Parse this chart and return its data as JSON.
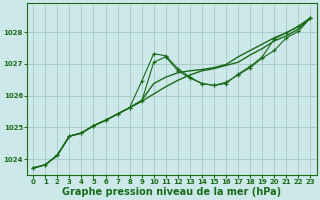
{
  "background_color": "#cce8e8",
  "grid_color": "#aacccc",
  "line_color": "#1a6b1a",
  "xlabel": "Graphe pression niveau de la mer (hPa)",
  "xlabel_fontsize": 7,
  "xlim": [
    -0.5,
    23.5
  ],
  "ylim": [
    1023.5,
    1028.9
  ],
  "yticks": [
    1024,
    1025,
    1026,
    1027,
    1028
  ],
  "xticks": [
    0,
    1,
    2,
    3,
    4,
    5,
    6,
    7,
    8,
    9,
    10,
    11,
    12,
    13,
    14,
    15,
    16,
    17,
    18,
    19,
    20,
    21,
    22,
    23
  ],
  "s1_x": [
    0,
    1,
    2,
    3,
    4,
    5,
    6,
    7,
    8,
    9,
    10,
    11,
    12,
    13,
    14,
    15,
    16,
    17,
    18,
    19,
    20,
    21,
    22,
    23
  ],
  "s1_y": [
    1023.72,
    1023.82,
    1024.12,
    1024.72,
    1024.82,
    1025.05,
    1025.22,
    1025.42,
    1025.62,
    1025.82,
    1026.05,
    1026.28,
    1026.48,
    1026.65,
    1026.78,
    1026.85,
    1026.95,
    1027.05,
    1027.28,
    1027.48,
    1027.72,
    1027.88,
    1028.1,
    1028.45
  ],
  "s2_x": [
    0,
    1,
    2,
    3,
    4,
    5,
    6,
    7,
    8,
    9,
    10,
    11,
    12,
    13,
    14,
    15,
    16,
    17,
    18,
    19,
    20,
    21,
    22,
    23
  ],
  "s2_y": [
    1023.72,
    1023.82,
    1024.12,
    1024.72,
    1024.82,
    1025.05,
    1025.22,
    1025.42,
    1025.62,
    1026.45,
    1027.32,
    1027.25,
    1026.85,
    1026.58,
    1026.38,
    1026.32,
    1026.38,
    1026.68,
    1026.92,
    1027.22,
    1027.78,
    1027.98,
    1028.18,
    1028.45
  ],
  "s3_x": [
    0,
    1,
    2,
    3,
    4,
    5,
    6,
    7,
    8,
    9,
    10,
    11,
    12,
    13,
    14,
    15,
    16,
    17,
    18,
    19,
    20,
    21,
    22,
    23
  ],
  "s3_y": [
    1023.72,
    1023.82,
    1024.12,
    1024.72,
    1024.82,
    1025.05,
    1025.22,
    1025.42,
    1025.62,
    1025.82,
    1027.05,
    1027.22,
    1026.78,
    1026.55,
    1026.38,
    1026.32,
    1026.42,
    1026.65,
    1026.88,
    1027.18,
    1027.42,
    1027.82,
    1028.02,
    1028.45
  ],
  "s4_x": [
    0,
    1,
    2,
    3,
    4,
    5,
    6,
    7,
    8,
    9,
    10,
    11,
    12,
    13,
    14,
    15,
    16,
    17,
    18,
    19,
    20,
    21,
    22,
    23
  ],
  "s4_y": [
    1023.72,
    1023.82,
    1024.12,
    1024.72,
    1024.82,
    1025.05,
    1025.22,
    1025.42,
    1025.62,
    1025.85,
    1026.38,
    1026.58,
    1026.72,
    1026.78,
    1026.82,
    1026.88,
    1026.98,
    1027.22,
    1027.42,
    1027.62,
    1027.82,
    1027.98,
    1028.18,
    1028.45
  ]
}
